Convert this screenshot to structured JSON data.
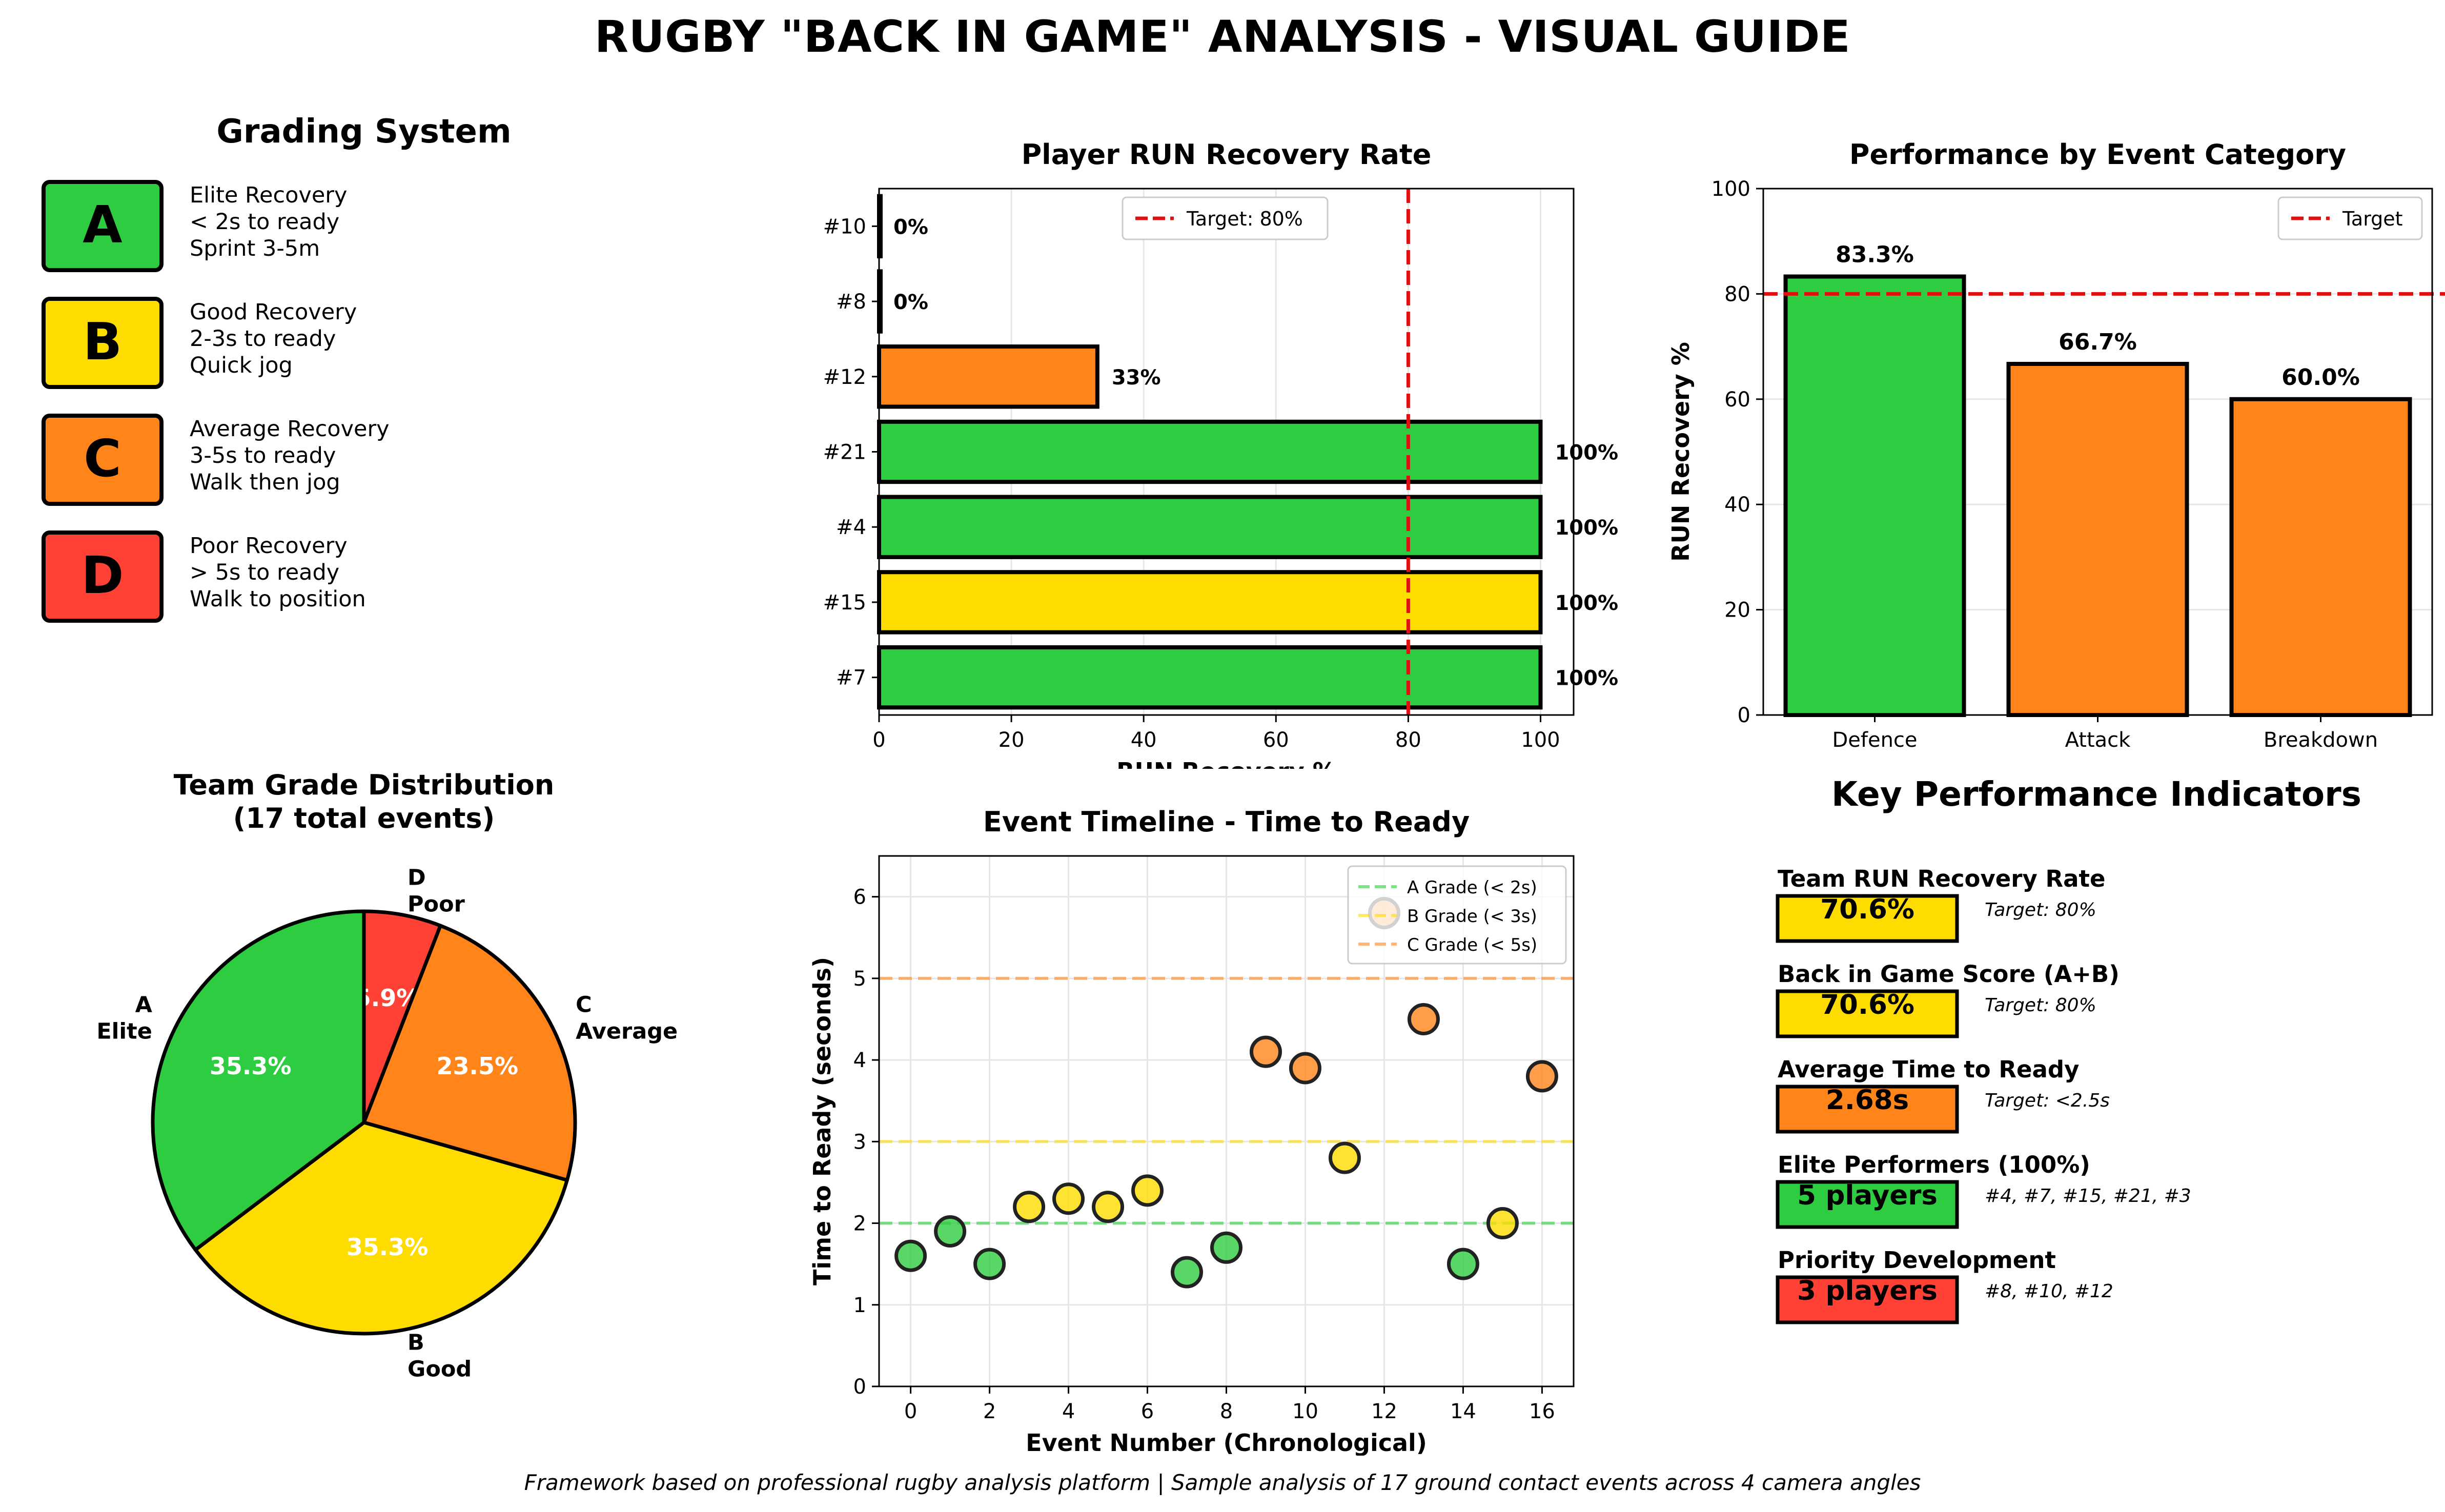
{
  "title": "RUGBY \"BACK IN GAME\" ANALYSIS - VISUAL GUIDE",
  "footer": "Framework based on professional rugby analysis platform | Sample analysis of 17 ground contact events across 4 camera angles",
  "colors": {
    "A": "#2ecc40",
    "B": "#ffdc00",
    "C": "#ff851b",
    "D": "#ff4136",
    "target": "#e01010"
  },
  "grading": {
    "title": "Grading System",
    "grades": [
      {
        "letter": "A",
        "lines": [
          "Elite Recovery",
          "< 2s to ready",
          "Sprint 3-5m"
        ],
        "color": "#2ecc40"
      },
      {
        "letter": "B",
        "lines": [
          "Good Recovery",
          "2-3s to ready",
          "Quick jog"
        ],
        "color": "#ffdc00"
      },
      {
        "letter": "C",
        "lines": [
          "Average Recovery",
          "3-5s to ready",
          "Walk then jog"
        ],
        "color": "#ff851b"
      },
      {
        "letter": "D",
        "lines": [
          "Poor Recovery",
          "> 5s to ready",
          "Walk to position"
        ],
        "color": "#ff4136"
      }
    ]
  },
  "kpi": {
    "title": "Key Performance Indicators",
    "items": [
      {
        "label": "Team RUN Recovery Rate",
        "value": "70.6%",
        "note": "Target: 80%",
        "color": "#ffdc00"
      },
      {
        "label": "Back in Game Score (A+B)",
        "value": "70.6%",
        "note": "Target: 80%",
        "color": "#ffdc00"
      },
      {
        "label": "Average Time to Ready",
        "value": "2.68s",
        "note": "Target: <2.5s",
        "color": "#ff851b"
      },
      {
        "label": "Elite Performers (100%)",
        "value": "5 players",
        "note": "#4, #7, #15, #21, #3",
        "color": "#2ecc40"
      },
      {
        "label": "Priority Development",
        "value": "3 players",
        "note": "#8, #10, #12",
        "color": "#ff4136"
      }
    ]
  },
  "chart_data": [
    {
      "id": "player-recovery",
      "type": "bar",
      "orientation": "horizontal",
      "title": "Player RUN Recovery Rate",
      "xlabel": "RUN Recovery %",
      "ylabel": "",
      "categories": [
        "#7",
        "#15",
        "#4",
        "#21",
        "#12",
        "#8",
        "#10"
      ],
      "values": [
        100,
        100,
        100,
        100,
        33,
        0,
        0
      ],
      "value_labels": [
        "100%",
        "100%",
        "100%",
        "100%",
        "33%",
        "0%",
        "0%"
      ],
      "colors": [
        "#2ecc40",
        "#ffdc00",
        "#2ecc40",
        "#2ecc40",
        "#ff851b",
        "#2ecc40",
        "#2ecc40"
      ],
      "xlim": [
        0,
        105
      ],
      "xticks": [
        0,
        20,
        40,
        60,
        80,
        100
      ],
      "target": {
        "value": 80,
        "label": "Target: 80%"
      },
      "grid": true,
      "legend": "top-center"
    },
    {
      "id": "event-category",
      "type": "bar",
      "title": "Performance by Event Category",
      "xlabel": "",
      "ylabel": "RUN Recovery %",
      "categories": [
        "Defence",
        "Attack",
        "Breakdown"
      ],
      "values": [
        83.3,
        66.7,
        60.0
      ],
      "value_labels": [
        "83.3%",
        "66.7%",
        "60.0%"
      ],
      "colors": [
        "#2ecc40",
        "#ff851b",
        "#ff851b"
      ],
      "ylim": [
        0,
        100
      ],
      "yticks": [
        0,
        20,
        40,
        60,
        80,
        100
      ],
      "target": {
        "value": 80,
        "label": "Target"
      },
      "grid": true,
      "legend": "top-right"
    },
    {
      "id": "grade-distribution",
      "type": "pie",
      "title": "Team Grade Distribution",
      "subtitle": "(17 total events)",
      "slices": [
        {
          "grade": "D",
          "name": "Poor",
          "value": 5.9,
          "label": "5.9%",
          "color": "#ff4136"
        },
        {
          "grade": "C",
          "name": "Average",
          "value": 23.5,
          "label": "23.5%",
          "color": "#ff851b"
        },
        {
          "grade": "B",
          "name": "Good",
          "value": 35.3,
          "label": "35.3%",
          "color": "#ffdc00"
        },
        {
          "grade": "A",
          "name": "Elite",
          "value": 35.3,
          "label": "35.3%",
          "color": "#2ecc40"
        }
      ]
    },
    {
      "id": "event-timeline",
      "type": "scatter",
      "title": "Event Timeline - Time to Ready",
      "xlabel": "Event Number (Chronological)",
      "ylabel": "Time to Ready (seconds)",
      "x": [
        0,
        1,
        2,
        3,
        4,
        5,
        6,
        7,
        8,
        9,
        10,
        11,
        12,
        13,
        14,
        15,
        16
      ],
      "y": [
        1.6,
        1.9,
        1.5,
        2.2,
        2.3,
        2.2,
        2.4,
        1.4,
        1.7,
        4.1,
        3.9,
        2.8,
        5.8,
        4.5,
        1.5,
        2.0,
        3.8
      ],
      "xlim": [
        -0.8,
        16.8
      ],
      "ylim": [
        0,
        6.5
      ],
      "xticks": [
        0,
        2,
        4,
        6,
        8,
        10,
        12,
        14,
        16
      ],
      "yticks": [
        0,
        1,
        2,
        3,
        4,
        5,
        6
      ],
      "thresholds": [
        {
          "value": 2,
          "label": "A Grade (< 2s)",
          "color": "#2ecc40"
        },
        {
          "value": 3,
          "label": "B Grade (< 3s)",
          "color": "#ffdc00"
        },
        {
          "value": 5,
          "label": "C Grade (< 5s)",
          "color": "#ff851b"
        }
      ],
      "grid": true,
      "legend": "top-right"
    }
  ]
}
